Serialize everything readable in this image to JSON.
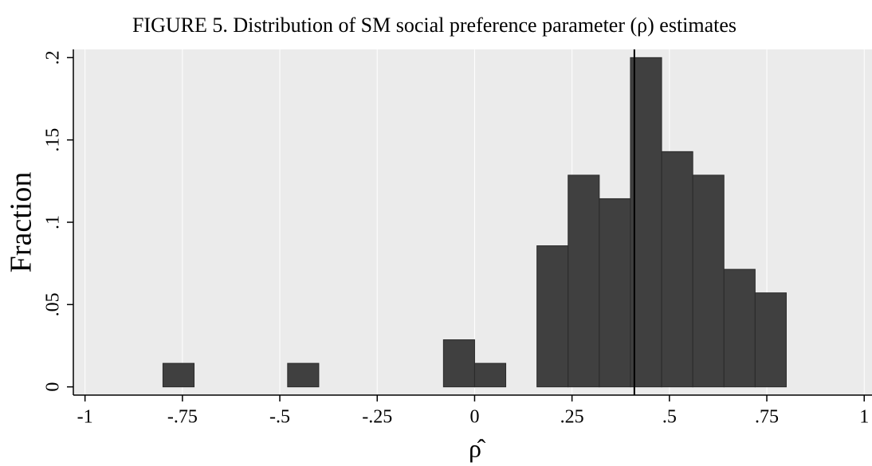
{
  "chart_data": {
    "type": "histogram",
    "title": "FIGURE 5. Distribution of SM social preference parameter (ρ) estimates",
    "x_label": "ρ̂",
    "y_label": "Fraction",
    "bins": [
      -0.8,
      -0.72,
      -0.64,
      -0.56,
      -0.48,
      -0.4,
      -0.32,
      -0.24,
      -0.16,
      -0.08,
      0,
      0.08,
      0.16,
      0.24,
      0.32,
      0.4,
      0.48,
      0.56,
      0.64,
      0.72,
      0.8
    ],
    "values": [
      0.0143,
      0,
      0,
      0,
      0.0143,
      0,
      0,
      0,
      0,
      0.0286,
      0.0143,
      0,
      0.0857,
      0.1286,
      0.1143,
      0.2,
      0.1429,
      0.1286,
      0.0714,
      0.0571
    ],
    "color": "#404040",
    "vline": 0.41,
    "xlim": [
      -1.03,
      1.02
    ],
    "ylim": [
      -0.005,
      0.205
    ],
    "xticks": [
      {
        "value": -1,
        "label": "-1"
      },
      {
        "value": -0.75,
        "label": "-.75"
      },
      {
        "value": -0.5,
        "label": "-.5"
      },
      {
        "value": -0.25,
        "label": "-.25"
      },
      0,
      {
        "value": 0.25,
        "label": ".25"
      },
      {
        "value": 0.5,
        "label": ".5"
      },
      {
        "value": 0.75,
        "label": ".75"
      },
      1
    ],
    "yticks": [
      0,
      {
        "value": 0.05,
        "label": ".05"
      },
      {
        "value": 0.1,
        "label": ".1"
      },
      {
        "value": 0.15,
        "label": ".15"
      },
      {
        "value": 0.2,
        "label": ".2"
      }
    ],
    "grid": true
  }
}
